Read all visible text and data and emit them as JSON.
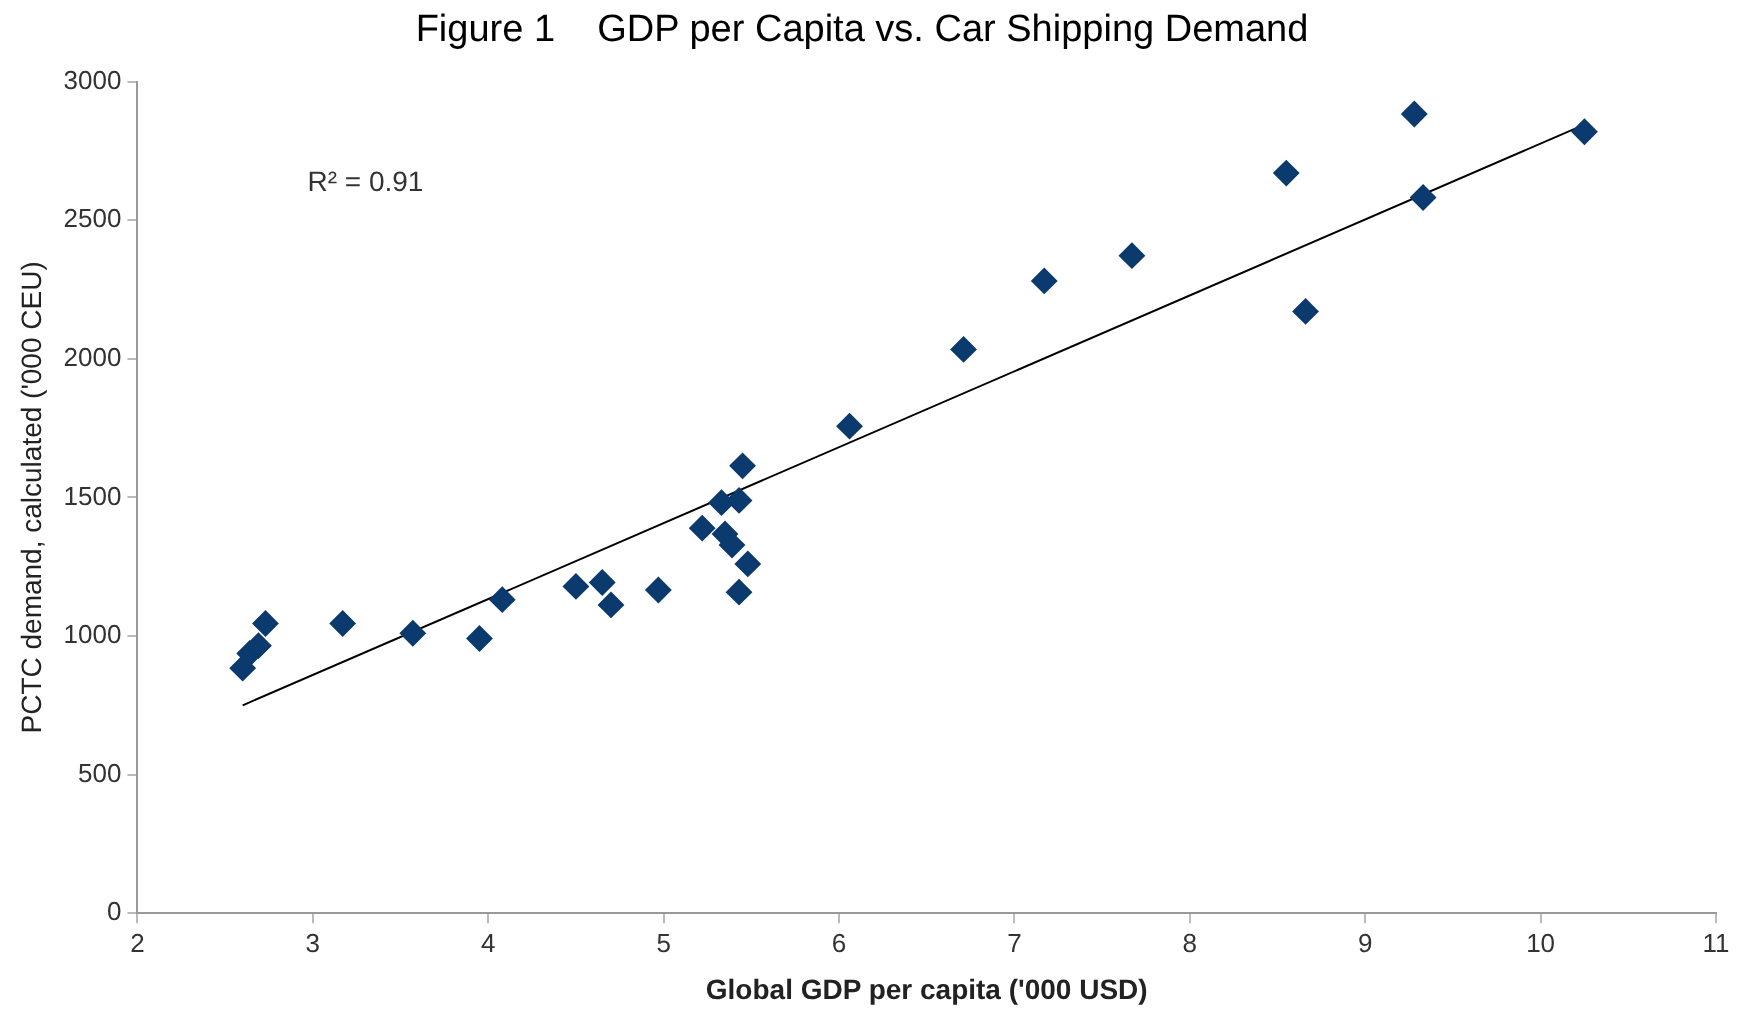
{
  "chart_data": {
    "type": "scatter",
    "title": "Figure 1    GDP per Capita vs. Car Shipping Demand",
    "xlabel": "Global GDP per capita ('000 USD)",
    "ylabel": "PCTC demand, calculated ('000 CEU)",
    "xlim": [
      2,
      11
    ],
    "xticks": [
      2,
      3,
      4,
      5,
      6,
      7,
      8,
      9,
      10,
      11
    ],
    "ylim": [
      0,
      3000
    ],
    "yticks": [
      0,
      500,
      1000,
      1500,
      2000,
      2500,
      3000
    ],
    "grid": false,
    "legend": false,
    "annotations": [
      "R² = 0.91"
    ],
    "series": [
      {
        "marker": "diamond",
        "color": "#0b3a6e",
        "x": [
          2.6,
          2.64,
          2.69,
          2.73,
          3.17,
          3.57,
          3.95,
          4.08,
          4.5,
          4.65,
          4.7,
          4.97,
          5.22,
          5.33,
          5.45,
          5.43,
          5.35,
          5.39,
          5.48,
          5.43,
          6.06,
          6.71,
          7.17,
          7.67,
          8.55,
          8.66,
          9.28,
          9.33,
          10.25
        ],
        "values": [
          884,
          937,
          965,
          1045,
          1045,
          1010,
          991,
          1131,
          1179,
          1193,
          1112,
          1166,
          1389,
          1481,
          1614,
          1489,
          1368,
          1328,
          1260,
          1158,
          1757,
          2034,
          2281,
          2372,
          2670,
          2171,
          2883,
          2582,
          2819
        ]
      },
      {
        "type": "line",
        "marker": "none",
        "color": "#000000",
        "x": [
          2.6,
          10.25
        ],
        "values": [
          750,
          2845
        ]
      }
    ]
  }
}
